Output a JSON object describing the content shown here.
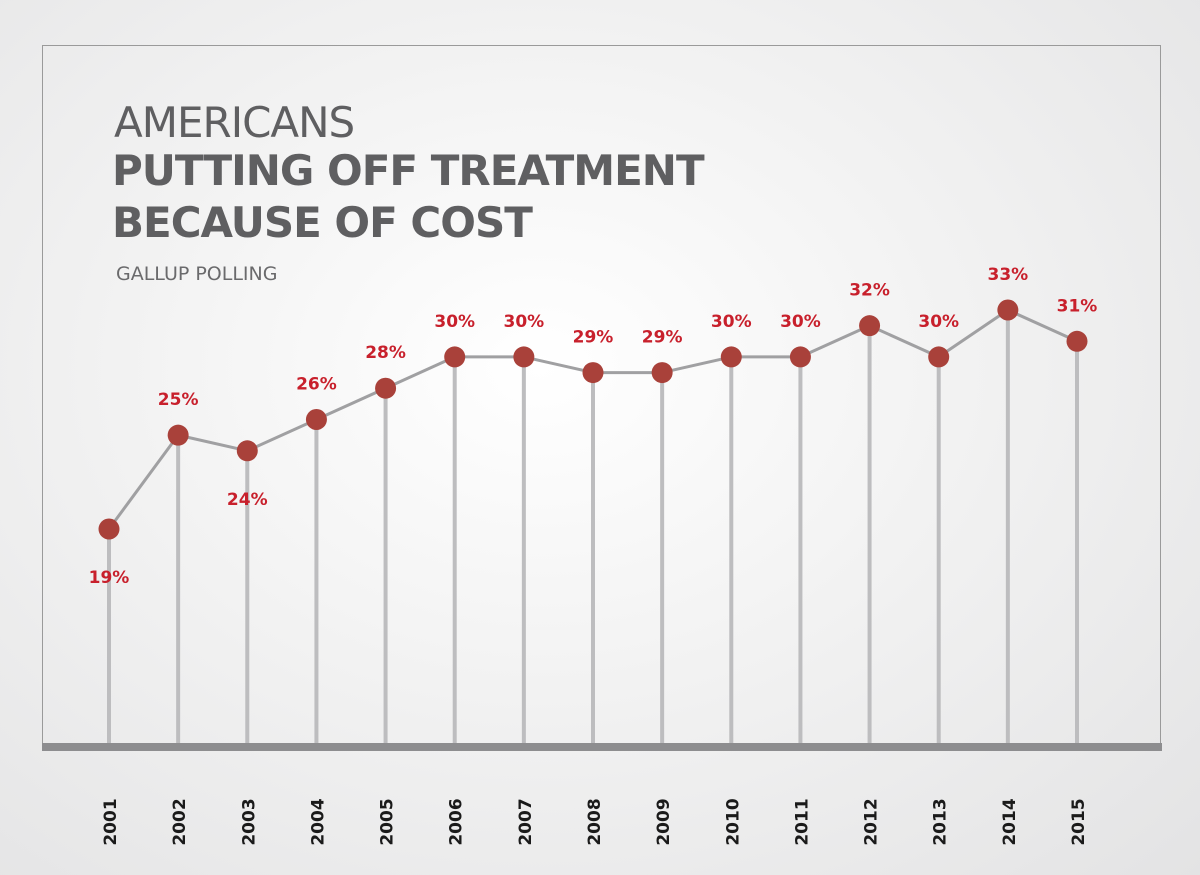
{
  "header": {
    "title_line1": "AMERICANS",
    "title_line2": "PUTTING OFF TREATMENT",
    "title_line3": "BECAUSE OF COST",
    "subtitle": "GALLUP POLLING"
  },
  "colors": {
    "marker": "#a9413a",
    "label": "#c8202c",
    "line": "#a0a0a2",
    "stem": "#bdbdbf",
    "baseline": "#8d8d8f",
    "tick_text": "#1a1a1a"
  },
  "chart_data": {
    "type": "line",
    "title": "AMERICANS PUTTING OFF TREATMENT BECAUSE OF COST",
    "subtitle": "GALLUP POLLING",
    "xlabel": "",
    "ylabel": "",
    "categories": [
      "2001",
      "2002",
      "2003",
      "2004",
      "2005",
      "2006",
      "2007",
      "2008",
      "2009",
      "2010",
      "2011",
      "2012",
      "2013",
      "2014",
      "2015"
    ],
    "values": [
      19,
      25,
      24,
      26,
      28,
      30,
      30,
      29,
      29,
      30,
      30,
      32,
      30,
      33,
      31
    ],
    "labels": [
      "19%",
      "25%",
      "24%",
      "26%",
      "28%",
      "30%",
      "30%",
      "29%",
      "29%",
      "30%",
      "30%",
      "32%",
      "30%",
      "33%",
      "31%"
    ],
    "label_below": [
      true,
      false,
      true,
      false,
      false,
      false,
      false,
      false,
      false,
      false,
      false,
      false,
      false,
      false,
      false
    ],
    "ylim": [
      0,
      40
    ],
    "grid": false,
    "legend": "none"
  }
}
